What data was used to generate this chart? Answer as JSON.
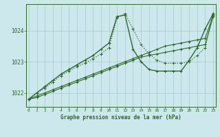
{
  "title": "Graphe pression niveau de la mer (hPa)",
  "background_color": "#cce8ec",
  "grid_color": "#aacdd4",
  "line_color": "#2d6629",
  "x_min": 0,
  "x_max": 23,
  "y_min": 1021.55,
  "y_max": 1024.85,
  "yticks": [
    1022,
    1023,
    1024
  ],
  "xticks": [
    0,
    1,
    2,
    3,
    4,
    5,
    6,
    7,
    8,
    9,
    10,
    11,
    12,
    13,
    14,
    15,
    16,
    17,
    18,
    19,
    20,
    21,
    22,
    23
  ],
  "series": [
    {
      "data": [
        1021.8,
        1022.0,
        1022.15,
        1022.35,
        1022.55,
        1022.7,
        1022.85,
        1022.95,
        1023.1,
        1023.25,
        1023.45,
        1024.4,
        1024.55,
        1024.05,
        1023.55,
        1023.25,
        1023.05,
        1022.95,
        1022.95,
        1022.95,
        1023.0,
        1023.2,
        1023.45,
        1024.55
      ],
      "linestyle": ":",
      "linewidth": 0.9,
      "marker": "+"
    },
    {
      "data": [
        1021.8,
        1022.0,
        1022.2,
        1022.4,
        1022.6,
        1022.75,
        1022.9,
        1023.05,
        1023.2,
        1023.4,
        1023.6,
        1024.45,
        1024.5,
        1023.4,
        1023.0,
        1022.75,
        1022.7,
        1022.7,
        1022.7,
        1022.7,
        1023.05,
        1023.45,
        1024.05,
        1024.55
      ],
      "linestyle": "-",
      "linewidth": 1.0,
      "marker": "+"
    },
    {
      "data": [
        1021.8,
        1021.9,
        1022.0,
        1022.1,
        1022.2,
        1022.3,
        1022.4,
        1022.5,
        1022.6,
        1022.7,
        1022.8,
        1022.9,
        1023.0,
        1023.1,
        1023.2,
        1023.3,
        1023.4,
        1023.5,
        1023.55,
        1023.6,
        1023.65,
        1023.7,
        1023.75,
        1024.5
      ],
      "linestyle": "-",
      "linewidth": 0.8,
      "marker": "+"
    },
    {
      "data": [
        1021.8,
        1021.85,
        1021.95,
        1022.05,
        1022.15,
        1022.25,
        1022.35,
        1022.45,
        1022.55,
        1022.65,
        1022.75,
        1022.85,
        1022.95,
        1023.05,
        1023.15,
        1023.2,
        1023.25,
        1023.3,
        1023.35,
        1023.4,
        1023.45,
        1023.5,
        1023.55,
        1024.45
      ],
      "linestyle": "-",
      "linewidth": 0.8,
      "marker": "+"
    }
  ]
}
